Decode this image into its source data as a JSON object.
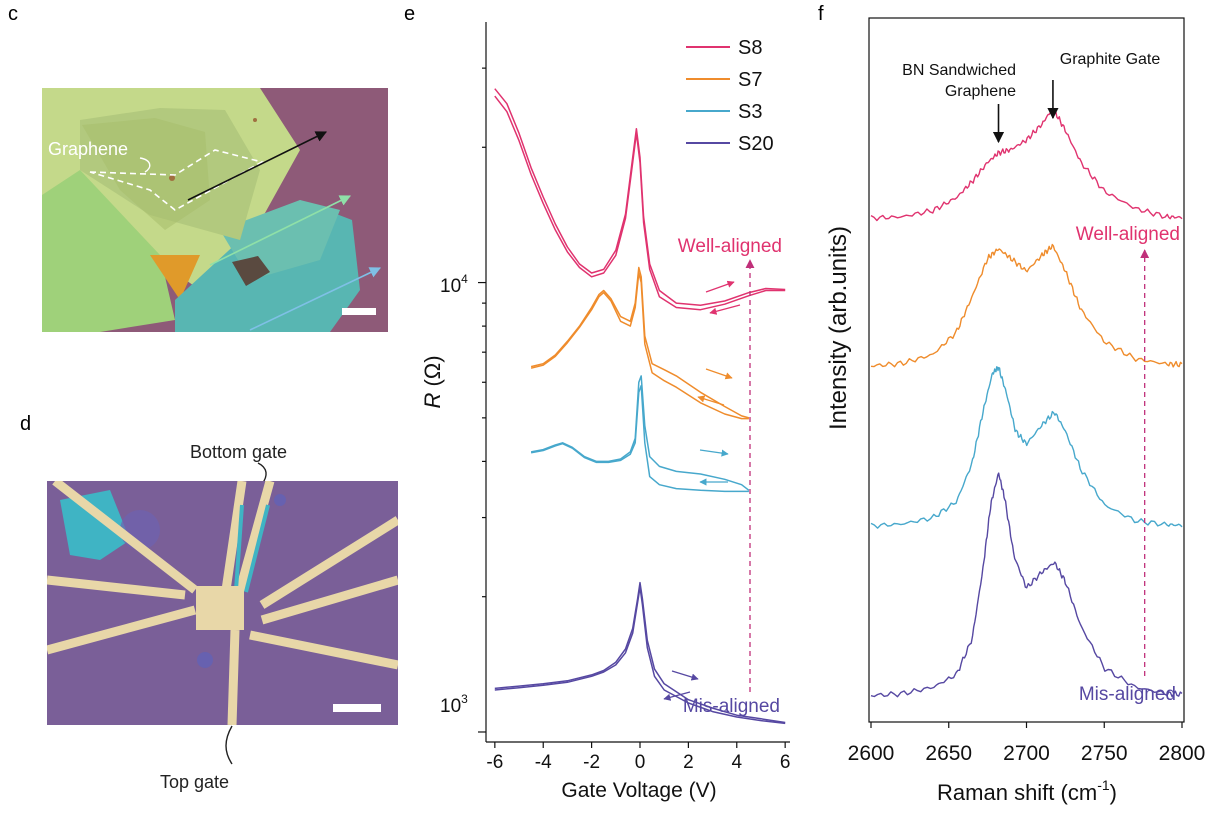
{
  "panels": {
    "c": {
      "letter": "c",
      "annotations": {
        "graphene": "Graphene"
      },
      "colors": {
        "substrate": "#8e5a78",
        "graphite": "#c4d98a",
        "bn": "#58b6b2",
        "accent": "#e09a2a"
      }
    },
    "d": {
      "letter": "d",
      "annotations": {
        "bottom_gate": "Bottom gate",
        "top_gate": "Top gate"
      },
      "colors": {
        "substrate": "#7a5f98",
        "metal": "#e8d7a8",
        "bn": "#3fb4c4"
      }
    },
    "e": {
      "letter": "e"
    },
    "f": {
      "letter": "f"
    }
  },
  "chart_data": [
    {
      "panel": "e",
      "type": "line",
      "title": "",
      "xlabel": "Gate Voltage (V)",
      "ylabel_italic": "R",
      "ylabel_rest": " (Ω)",
      "yscale": "log",
      "xlim": [
        -6.2,
        6.2
      ],
      "ylim": [
        950,
        38000
      ],
      "xticks": [
        -6,
        -4,
        -2,
        0,
        2,
        4,
        6
      ],
      "xtick_labels": [
        "-6",
        "-4",
        "-2",
        "0",
        "2",
        "4",
        "6"
      ],
      "ytick_labels": [
        {
          "value": 10000,
          "base": "10",
          "exp": "4"
        },
        {
          "value": 1000,
          "base": "10",
          "exp": "3"
        }
      ],
      "legend_position": "top-right",
      "legend": [
        "S8",
        "S7",
        "S3",
        "S20"
      ],
      "annotations": {
        "top": "Well-aligned",
        "bottom": "Mis-aligned",
        "marker_x": 4.4
      },
      "series": [
        {
          "name": "S8",
          "color": "#e0336f",
          "x": [
            -6,
            -5.5,
            -5,
            -4.5,
            -4,
            -3.5,
            -3,
            -2.5,
            -2,
            -1.5,
            -1,
            -0.6,
            -0.3,
            -0.15,
            0,
            0.15,
            0.4,
            0.8,
            1.5,
            2.5,
            3.5,
            4.5,
            5.2,
            6
          ],
          "y": [
            27000,
            25000,
            21500,
            18000,
            15500,
            13500,
            12000,
            11000,
            10500,
            10700,
            11800,
            14200,
            19000,
            22000,
            19000,
            14000,
            11000,
            9600,
            9000,
            8900,
            9100,
            9500,
            9700,
            9650
          ],
          "y2": [
            26000,
            24000,
            20700,
            17400,
            15000,
            13100,
            11700,
            10800,
            10300,
            10500,
            11500,
            13900,
            18500,
            21500,
            18500,
            13600,
            10700,
            9300,
            8800,
            8700,
            8950,
            9350,
            9600,
            9600
          ]
        },
        {
          "name": "S7",
          "color": "#ef8c2c",
          "x": [
            -4.5,
            -4,
            -3.5,
            -3,
            -2.5,
            -2,
            -1.7,
            -1.5,
            -1.2,
            -0.8,
            -0.4,
            -0.2,
            -0.05,
            0.05,
            0.2,
            0.5,
            1,
            1.5,
            2.5,
            3.5,
            4.2,
            4.5
          ],
          "y": [
            6500,
            6600,
            6900,
            7400,
            8000,
            8800,
            9400,
            9600,
            9200,
            8400,
            8200,
            9000,
            10800,
            10300,
            7600,
            6600,
            6400,
            6200,
            5700,
            5300,
            5050,
            5000
          ],
          "y2": [
            6450,
            6550,
            6850,
            7350,
            7950,
            8700,
            9300,
            9500,
            9100,
            8200,
            8000,
            8800,
            10500,
            10000,
            7300,
            6300,
            6050,
            5850,
            5400,
            5100,
            4980,
            4980
          ]
        },
        {
          "name": "S3",
          "color": "#47a8cc",
          "x": [
            -4.5,
            -4,
            -3.5,
            -3.2,
            -2.8,
            -2.3,
            -1.8,
            -1.3,
            -0.8,
            -0.4,
            -0.2,
            -0.05,
            0.05,
            0.2,
            0.4,
            0.8,
            1.5,
            2.5,
            3.5,
            4.2,
            4.5
          ],
          "y": [
            4200,
            4250,
            4350,
            4400,
            4300,
            4100,
            4000,
            4000,
            4050,
            4200,
            4500,
            6000,
            6200,
            4800,
            4100,
            3900,
            3800,
            3750,
            3650,
            3550,
            3450
          ],
          "y2": [
            4180,
            4230,
            4330,
            4380,
            4280,
            4080,
            3980,
            3980,
            4020,
            4150,
            4400,
            5700,
            5900,
            4400,
            3700,
            3550,
            3480,
            3450,
            3430,
            3430,
            3430
          ]
        },
        {
          "name": "S20",
          "color": "#5648a2",
          "x": [
            -6,
            -5,
            -4,
            -3,
            -2,
            -1.5,
            -1,
            -0.6,
            -0.3,
            -0.1,
            0,
            0.1,
            0.3,
            0.6,
            1,
            2,
            3,
            4,
            5,
            6
          ],
          "y": [
            1250,
            1265,
            1280,
            1300,
            1340,
            1370,
            1430,
            1530,
            1700,
            1980,
            2150,
            1980,
            1600,
            1380,
            1280,
            1180,
            1130,
            1090,
            1070,
            1050
          ],
          "y2": [
            1240,
            1255,
            1270,
            1290,
            1330,
            1360,
            1410,
            1500,
            1660,
            1940,
            2100,
            1920,
            1540,
            1330,
            1240,
            1160,
            1110,
            1080,
            1060,
            1045
          ]
        }
      ]
    },
    {
      "panel": "f",
      "type": "line",
      "title": "",
      "xlabel": "Raman shift (cm",
      "xlabel_sup": "-1",
      "xlabel_tail": ")",
      "ylabel": "Intensity (arb.units)",
      "xlim": [
        2600,
        2800
      ],
      "xticks": [
        2600,
        2650,
        2700,
        2750,
        2800
      ],
      "xtick_labels": [
        "2600",
        "2650",
        "2700",
        "2750",
        "2800"
      ],
      "ylim": [
        0,
        100
      ],
      "annotations": {
        "bn_line1": "BN Sandwiched",
        "bn_line2": "Graphene",
        "graphite": "Graphite Gate",
        "bn_x": 2682,
        "graphite_x": 2717,
        "marker_x": 2776,
        "top": "Well-aligned",
        "bottom": "Mis-aligned"
      },
      "series": [
        {
          "name": "S8",
          "color": "#e0336f",
          "offset": 75,
          "x": [
            2600,
            2620,
            2640,
            2655,
            2665,
            2675,
            2682,
            2690,
            2700,
            2710,
            2717,
            2725,
            2735,
            2750,
            2770,
            2790,
            2800
          ],
          "y": [
            0.3,
            0.5,
            1.5,
            3.5,
            6,
            9,
            10.5,
            11,
            12.5,
            15,
            17.5,
            14,
            9,
            4.5,
            1.8,
            0.5,
            0.4
          ]
        },
        {
          "name": "S7",
          "color": "#ef8c2c",
          "offset": 52,
          "x": [
            2600,
            2620,
            2640,
            2655,
            2665,
            2675,
            2682,
            2690,
            2700,
            2710,
            2717,
            2725,
            2735,
            2750,
            2770,
            2790,
            2800
          ],
          "y": [
            0.2,
            0.6,
            2,
            5.5,
            11,
            17,
            18.5,
            17,
            15,
            17.5,
            19,
            15,
            9,
            4,
            1.3,
            0.5,
            0.4
          ]
        },
        {
          "name": "S3",
          "color": "#47a8cc",
          "offset": 27,
          "x": [
            2600,
            2620,
            2640,
            2655,
            2665,
            2672,
            2678,
            2682,
            2687,
            2693,
            2700,
            2710,
            2718,
            2725,
            2735,
            2750,
            2770,
            2790,
            2800
          ],
          "y": [
            0.2,
            0.5,
            1.5,
            4,
            10,
            18,
            24,
            25,
            21,
            15,
            13,
            16,
            18,
            15,
            9,
            3.5,
            1,
            0.4,
            0.3
          ]
        },
        {
          "name": "S20",
          "color": "#5648a2",
          "offset": 0.5,
          "x": [
            2600,
            2620,
            2640,
            2655,
            2665,
            2672,
            2677,
            2682,
            2686,
            2692,
            2700,
            2710,
            2718,
            2725,
            2735,
            2750,
            2770,
            2790,
            2800
          ],
          "y": [
            0.2,
            0.5,
            1.5,
            3.5,
            9,
            20,
            30,
            35,
            31,
            22,
            17,
            19.5,
            21,
            18,
            11,
            4.5,
            1.5,
            0.5,
            0.4
          ]
        }
      ]
    }
  ]
}
